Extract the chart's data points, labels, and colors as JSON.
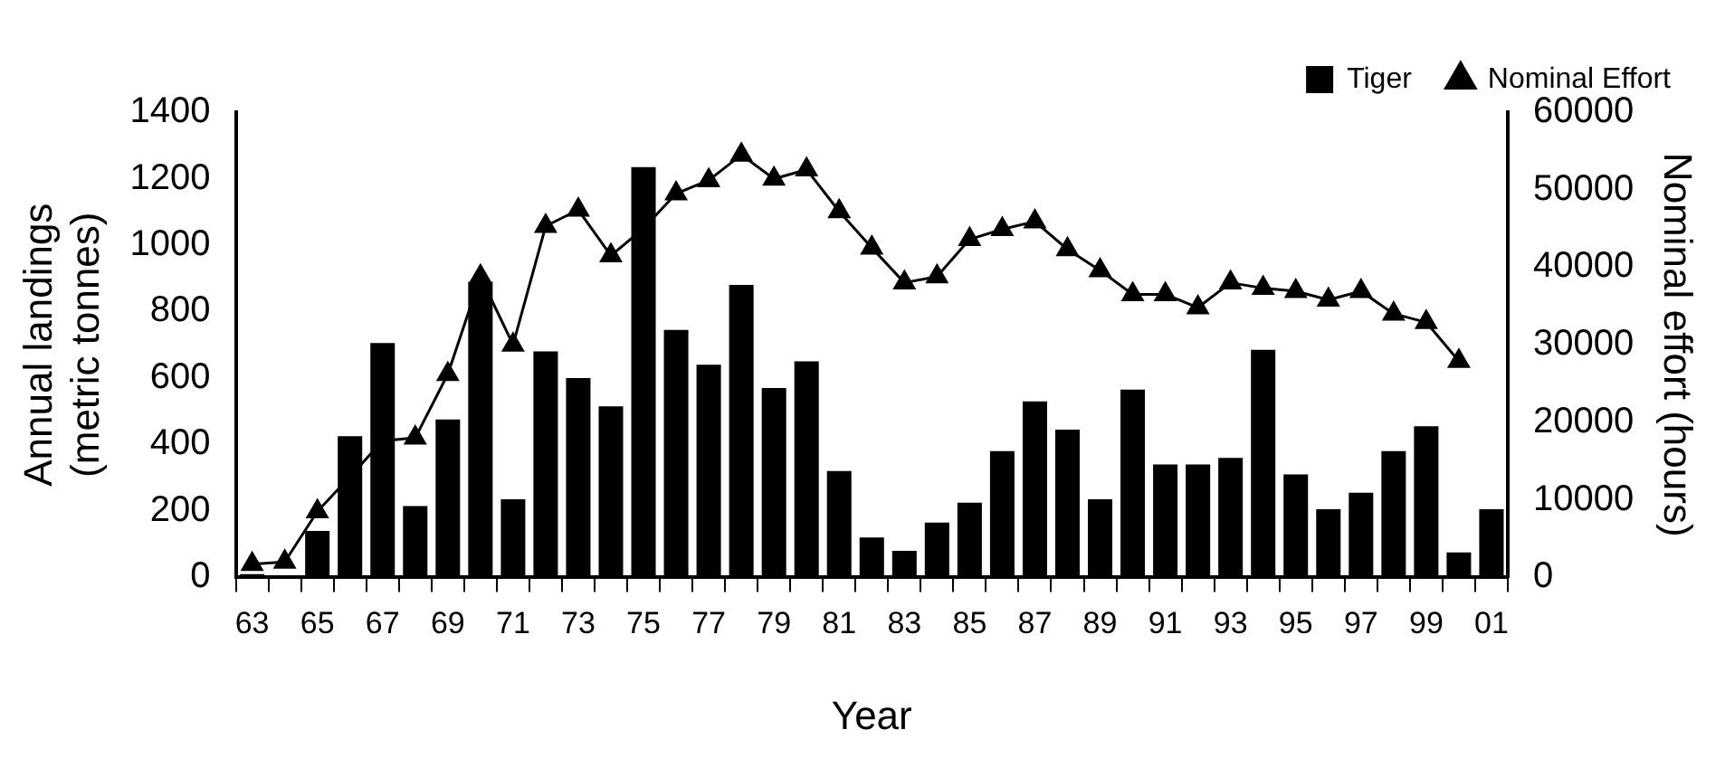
{
  "chart_data": {
    "type": "bar",
    "xlabel": "Year",
    "ylabel": "Annual landings\n(metric tonnes)",
    "y2label": "Nominal effort (hours)",
    "categories": [
      "63",
      null,
      "65",
      null,
      "67",
      null,
      "69",
      null,
      "71",
      null,
      "73",
      null,
      "75",
      null,
      "77",
      null,
      "79",
      null,
      "81",
      null,
      "83",
      null,
      "85",
      null,
      "87",
      null,
      "89",
      null,
      "91",
      null,
      "93",
      null,
      "95",
      null,
      "97",
      null,
      "99",
      null,
      "01"
    ],
    "series": [
      {
        "name": "Tiger",
        "color": "#000000",
        "values": [
          10,
          5,
          140,
          425,
          705,
          215,
          475,
          890,
          235,
          680,
          600,
          515,
          1235,
          745,
          640,
          880,
          570,
          650,
          320,
          120,
          80,
          165,
          225,
          380,
          530,
          445,
          235,
          565,
          340,
          340,
          360,
          685,
          310,
          205,
          255,
          380,
          455,
          75,
          205
        ]
      },
      {
        "name": "Nominal Effort",
        "type": "line",
        "axis": "y2",
        "color": "#000000",
        "marker": "triangle",
        "values": [
          1700,
          2000,
          8500,
          13000,
          17600,
          18000,
          26200,
          38800,
          30000,
          45300,
          47400,
          41500,
          45000,
          49500,
          51200,
          54500,
          51400,
          52600,
          47200,
          42500,
          38000,
          38800,
          43600,
          44900,
          45900,
          42300,
          39600,
          36500,
          36500,
          34800,
          38000,
          37300,
          36900,
          35800,
          36900,
          34000,
          32900,
          27900,
          null
        ]
      }
    ],
    "ylim": [
      0,
      1400
    ],
    "yticks": [
      0,
      200,
      400,
      600,
      800,
      1000,
      1200,
      1400
    ],
    "y2lim": [
      0,
      60000
    ],
    "y2ticks": [
      0,
      10000,
      20000,
      30000,
      40000,
      50000,
      60000
    ],
    "grid": false,
    "legend": "top right"
  }
}
